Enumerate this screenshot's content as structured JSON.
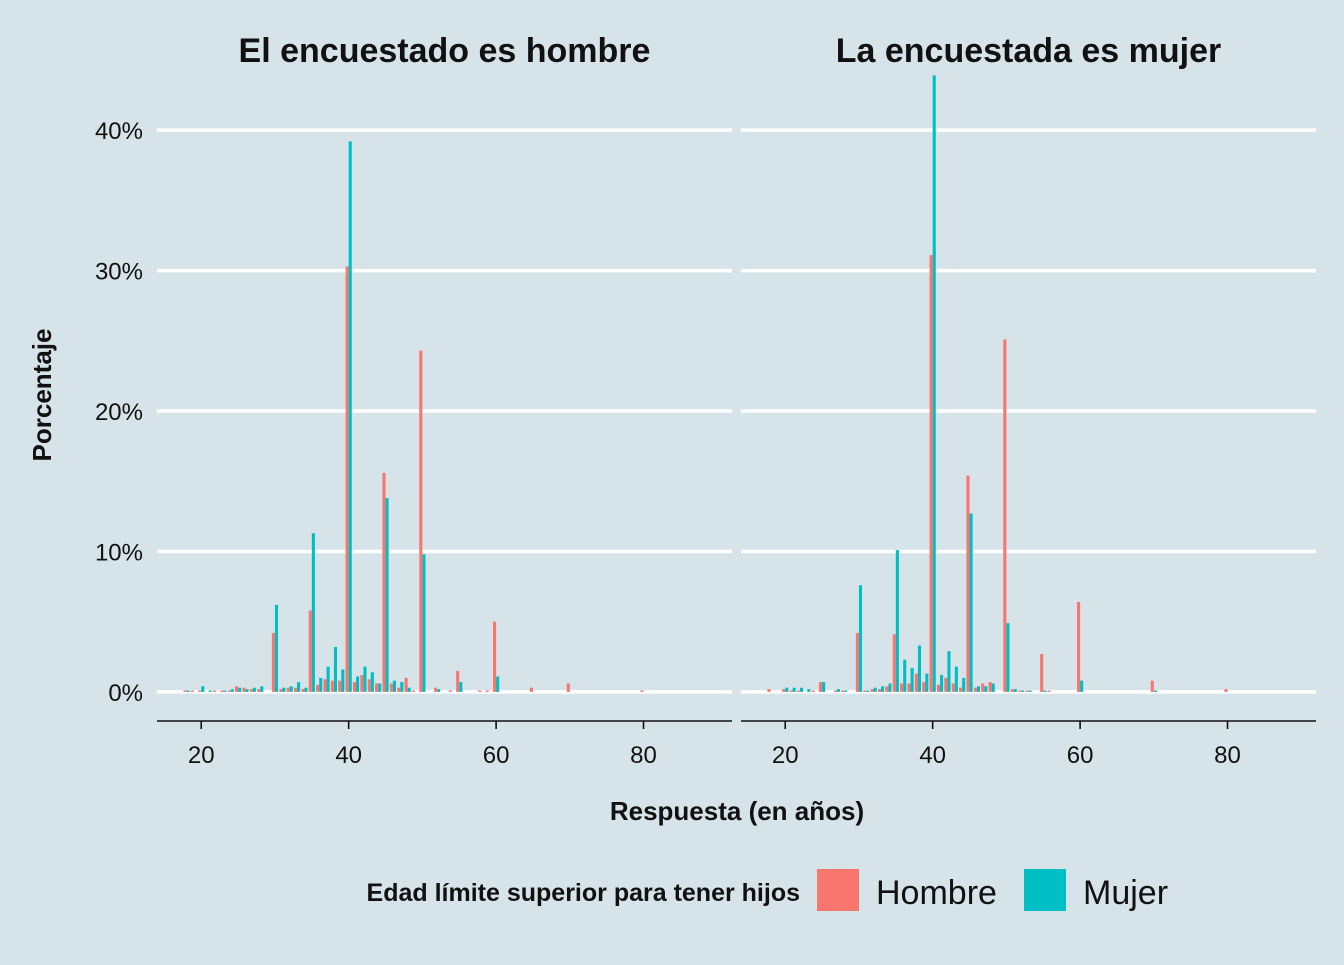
{
  "chart_data": {
    "type": "bar",
    "facets": [
      "El encuestado es hombre",
      "La encuestada es mujer"
    ],
    "xlabel": "Respuesta (en años)",
    "ylabel": "Porcentaje",
    "xlim": [
      14,
      92
    ],
    "ylim": [
      -2,
      44
    ],
    "x_ticks": [
      20,
      40,
      60,
      80
    ],
    "x_tick_labels": [
      "20",
      "40",
      "60",
      "80"
    ],
    "y_ticks": [
      0,
      10,
      20,
      30,
      40
    ],
    "y_tick_labels": [
      "0%",
      "10%",
      "20%",
      "30%",
      "40%"
    ],
    "grid": "horizontal",
    "legend": {
      "title": "Edad límite superior para tener hijos",
      "position": "bottom",
      "entries": [
        {
          "label": "Hombre",
          "color": "#f8766d"
        },
        {
          "label": "Mujer",
          "color": "#00bfc4"
        }
      ]
    },
    "series_colors": {
      "Hombre": "#f8766d",
      "Mujer": "#00bfc4"
    },
    "panels": [
      {
        "facet": "El encuestado es hombre",
        "series": [
          {
            "name": "Hombre",
            "points": [
              [
                18,
                0.1
              ],
              [
                19,
                0.1
              ],
              [
                20,
                0.1
              ],
              [
                22,
                0.1
              ],
              [
                23,
                0.1
              ],
              [
                24,
                0.1
              ],
              [
                25,
                0.4
              ],
              [
                26,
                0.3
              ],
              [
                27,
                0.2
              ],
              [
                28,
                0.2
              ],
              [
                30,
                4.2
              ],
              [
                31,
                0.2
              ],
              [
                32,
                0.3
              ],
              [
                33,
                0.3
              ],
              [
                34,
                0.2
              ],
              [
                35,
                5.8
              ],
              [
                36,
                0.5
              ],
              [
                37,
                0.9
              ],
              [
                38,
                0.8
              ],
              [
                39,
                0.8
              ],
              [
                40,
                30.3
              ],
              [
                41,
                0.7
              ],
              [
                42,
                1.2
              ],
              [
                43,
                0.9
              ],
              [
                44,
                0.6
              ],
              [
                45,
                15.6
              ],
              [
                46,
                0.6
              ],
              [
                47,
                0.3
              ],
              [
                48,
                1.0
              ],
              [
                49,
                0.1
              ],
              [
                50,
                24.3
              ],
              [
                52,
                0.3
              ],
              [
                54,
                0.1
              ],
              [
                55,
                1.5
              ],
              [
                58,
                0.1
              ],
              [
                59,
                0.1
              ],
              [
                60,
                5.0
              ],
              [
                65,
                0.3
              ],
              [
                70,
                0.6
              ],
              [
                80,
                0.1
              ]
            ]
          },
          {
            "name": "Mujer",
            "points": [
              [
                18,
                0.1
              ],
              [
                20,
                0.4
              ],
              [
                21,
                0.1
              ],
              [
                23,
                0.1
              ],
              [
                24,
                0.2
              ],
              [
                25,
                0.3
              ],
              [
                26,
                0.2
              ],
              [
                27,
                0.3
              ],
              [
                28,
                0.4
              ],
              [
                30,
                6.2
              ],
              [
                31,
                0.3
              ],
              [
                32,
                0.4
              ],
              [
                33,
                0.7
              ],
              [
                34,
                0.3
              ],
              [
                35,
                11.3
              ],
              [
                36,
                1.0
              ],
              [
                37,
                1.8
              ],
              [
                38,
                3.2
              ],
              [
                39,
                1.6
              ],
              [
                40,
                39.2
              ],
              [
                41,
                1.1
              ],
              [
                42,
                1.8
              ],
              [
                43,
                1.4
              ],
              [
                44,
                0.6
              ],
              [
                45,
                13.8
              ],
              [
                46,
                0.8
              ],
              [
                47,
                0.7
              ],
              [
                48,
                0.3
              ],
              [
                50,
                9.8
              ],
              [
                52,
                0.2
              ],
              [
                55,
                0.7
              ],
              [
                60,
                1.1
              ]
            ]
          }
        ]
      },
      {
        "facet": "La encuestada es mujer",
        "series": [
          {
            "name": "Hombre",
            "points": [
              [
                18,
                0.2
              ],
              [
                20,
                0.2
              ],
              [
                21,
                0.1
              ],
              [
                22,
                0.1
              ],
              [
                24,
                0.1
              ],
              [
                25,
                0.7
              ],
              [
                27,
                0.1
              ],
              [
                28,
                0.1
              ],
              [
                30,
                4.2
              ],
              [
                31,
                0.1
              ],
              [
                32,
                0.2
              ],
              [
                33,
                0.2
              ],
              [
                34,
                0.4
              ],
              [
                35,
                4.1
              ],
              [
                36,
                0.6
              ],
              [
                37,
                0.6
              ],
              [
                38,
                1.3
              ],
              [
                39,
                0.7
              ],
              [
                40,
                31.1
              ],
              [
                41,
                0.5
              ],
              [
                42,
                1.0
              ],
              [
                43,
                0.6
              ],
              [
                44,
                0.3
              ],
              [
                45,
                15.4
              ],
              [
                46,
                0.3
              ],
              [
                47,
                0.6
              ],
              [
                48,
                0.7
              ],
              [
                50,
                25.1
              ],
              [
                51,
                0.2
              ],
              [
                52,
                0.1
              ],
              [
                53,
                0.1
              ],
              [
                55,
                2.7
              ],
              [
                56,
                0.1
              ],
              [
                60,
                6.4
              ],
              [
                70,
                0.8
              ],
              [
                80,
                0.2
              ]
            ]
          },
          {
            "name": "Mujer",
            "points": [
              [
                20,
                0.3
              ],
              [
                21,
                0.3
              ],
              [
                22,
                0.3
              ],
              [
                23,
                0.2
              ],
              [
                25,
                0.7
              ],
              [
                27,
                0.2
              ],
              [
                28,
                0.1
              ],
              [
                30,
                7.6
              ],
              [
                31,
                0.1
              ],
              [
                32,
                0.3
              ],
              [
                33,
                0.4
              ],
              [
                34,
                0.6
              ],
              [
                35,
                10.1
              ],
              [
                36,
                2.3
              ],
              [
                37,
                1.7
              ],
              [
                38,
                3.3
              ],
              [
                39,
                1.3
              ],
              [
                40,
                43.9
              ],
              [
                41,
                1.2
              ],
              [
                42,
                2.9
              ],
              [
                43,
                1.8
              ],
              [
                44,
                1.0
              ],
              [
                45,
                12.7
              ],
              [
                46,
                0.4
              ],
              [
                47,
                0.4
              ],
              [
                48,
                0.6
              ],
              [
                50,
                4.9
              ],
              [
                51,
                0.2
              ],
              [
                52,
                0.1
              ],
              [
                53,
                0.1
              ],
              [
                55,
                0.1
              ],
              [
                60,
                0.8
              ],
              [
                70,
                0.1
              ]
            ]
          }
        ]
      }
    ]
  }
}
